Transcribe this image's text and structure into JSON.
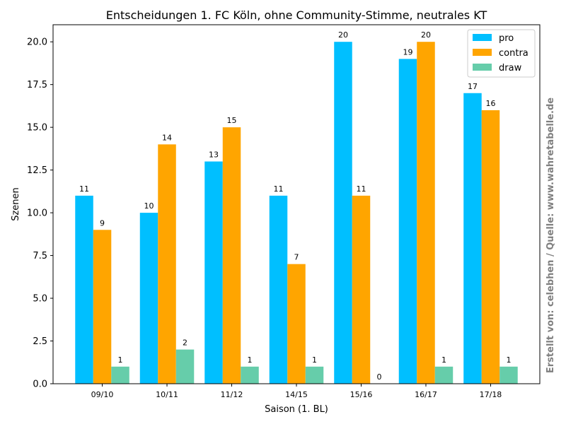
{
  "chart_data": {
    "type": "bar",
    "title": "Entscheidungen 1. FC Köln, ohne Community-Stimme, neutrales KT",
    "xlabel": "Saison (1. BL)",
    "ylabel": "Szenen",
    "categories": [
      "09/10",
      "10/11",
      "11/12",
      "14/15",
      "15/16",
      "16/17",
      "17/18"
    ],
    "ylim": [
      0,
      21
    ],
    "yticks": [
      "0.0",
      "2.5",
      "5.0",
      "7.5",
      "10.0",
      "12.5",
      "15.0",
      "17.5",
      "20.0"
    ],
    "grid": false,
    "legend_position": "top-right",
    "series": [
      {
        "name": "pro",
        "color": "#00bfff",
        "values": [
          11,
          10,
          13,
          11,
          20,
          19,
          17
        ]
      },
      {
        "name": "contra",
        "color": "#ffa500",
        "values": [
          9,
          14,
          15,
          7,
          11,
          20,
          16
        ]
      },
      {
        "name": "draw",
        "color": "#66cdaa",
        "values": [
          1,
          2,
          1,
          1,
          0,
          1,
          1
        ]
      }
    ]
  },
  "watermark": "Erstellt von: celebhen / Quelle: www.wahretabelle.de"
}
